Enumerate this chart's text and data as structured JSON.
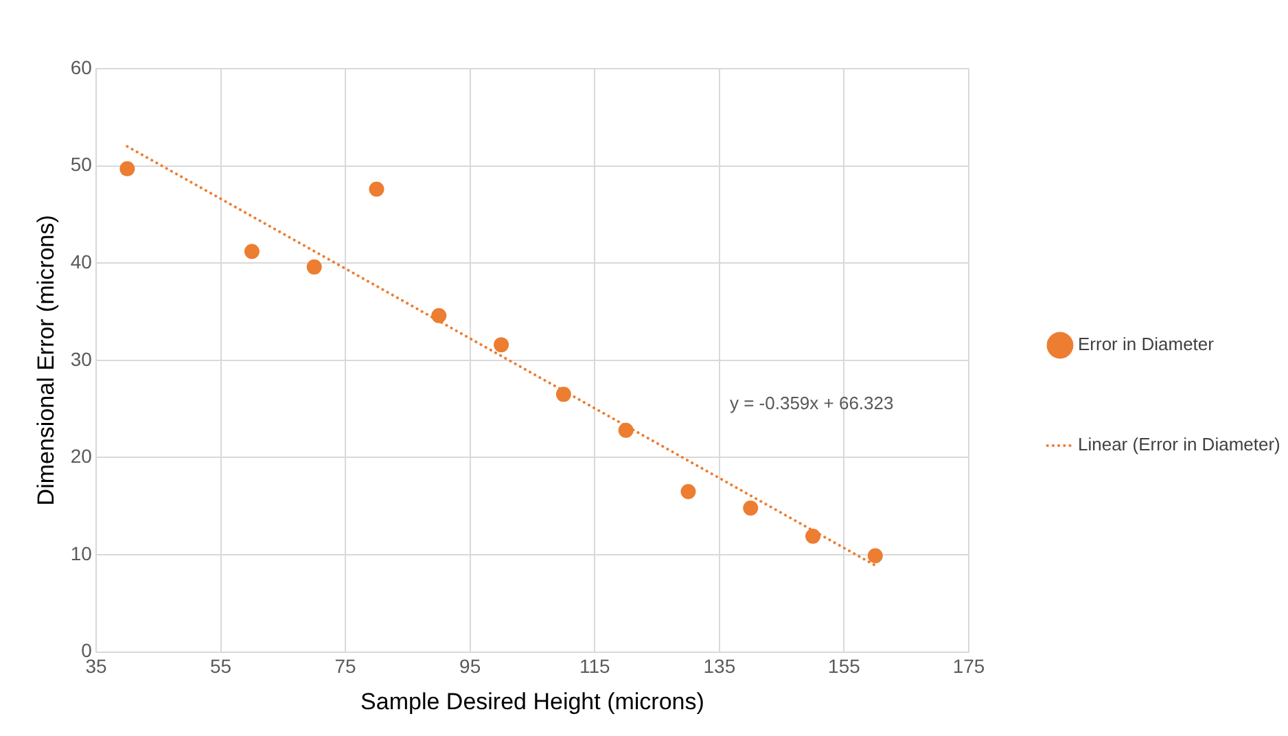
{
  "chart_data": {
    "type": "scatter",
    "xlabel": "Sample Desired Height (microns)",
    "ylabel": "Dimensional Error (microns)",
    "xlim": [
      35,
      175
    ],
    "xticks": [
      35,
      55,
      75,
      95,
      115,
      135,
      155,
      175
    ],
    "ylim": [
      0,
      60
    ],
    "yticks": [
      0,
      10,
      20,
      30,
      40,
      50,
      60
    ],
    "grid": true,
    "legend": "right",
    "series": [
      {
        "name": "Error in Diameter",
        "marker": "circle",
        "color": "#ed7d31",
        "x": [
          40,
          60,
          70,
          80,
          90,
          100,
          110,
          120,
          130,
          140,
          150,
          160
        ],
        "values": [
          49.7,
          41.2,
          39.6,
          47.6,
          34.6,
          31.6,
          26.5,
          22.8,
          16.5,
          14.8,
          11.9,
          9.9
        ]
      },
      {
        "name": "Linear (Error in Diameter)",
        "type": "line",
        "line_style": "dotted",
        "marker": "none",
        "color": "#ed7d31",
        "x": [
          40,
          160
        ],
        "values": [
          52.0,
          8.9
        ]
      }
    ],
    "annotations": [
      "y = -0.359x + 66.323"
    ]
  }
}
